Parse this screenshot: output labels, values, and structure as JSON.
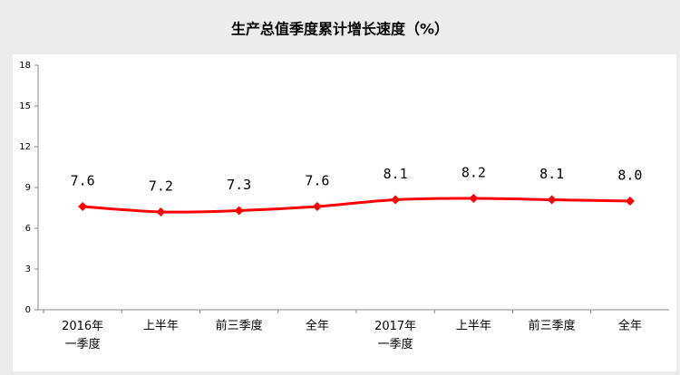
{
  "chart_data": {
    "type": "line",
    "title": "生产总值季度累计增长速度（%）",
    "categories": [
      "2016年一季度",
      "上半年",
      "前三季度",
      "全年",
      "2017年一季度",
      "上半年",
      "前三季度",
      "全年"
    ],
    "series": [
      {
        "name": "生产总值季度累计增长速度",
        "color": "#ff0000",
        "values": [
          7.6,
          7.2,
          7.3,
          7.6,
          8.1,
          8.2,
          8.1,
          8.0
        ],
        "value_labels": [
          "7.6",
          "7.2",
          "7.3",
          "7.6",
          "8.1",
          "8.2",
          "8.1",
          "8.0"
        ]
      }
    ],
    "ylim": [
      0,
      18
    ],
    "yticks": [
      0,
      3,
      6,
      9,
      12,
      15,
      18
    ],
    "grid": false,
    "smooth": true
  }
}
